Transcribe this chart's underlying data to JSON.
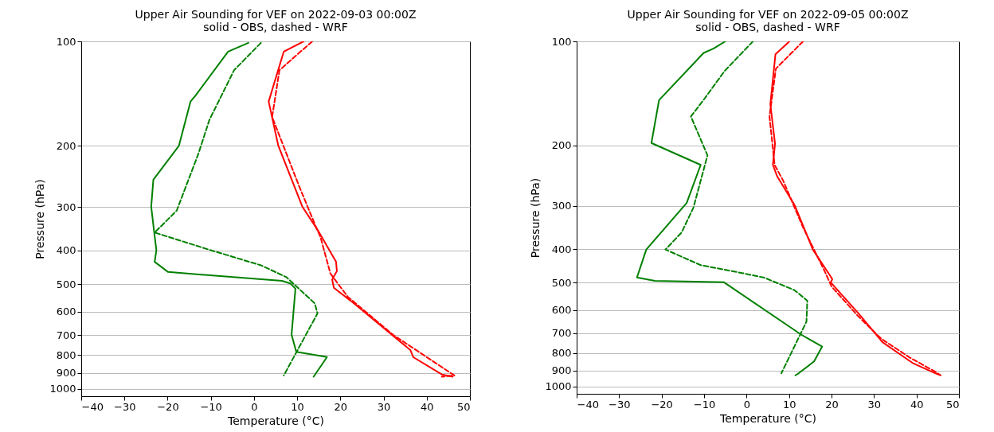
{
  "chart_data": [
    {
      "type": "line",
      "title": "Upper Air Sounding for VEF on 2022-09-03 00:00Z",
      "subtitle": "solid - OBS, dashed - WRF",
      "xlabel": "Temperature (°C)",
      "ylabel": "Pressure (hPa)",
      "xlim": [
        -40,
        50
      ],
      "xticks": [
        -40,
        -30,
        -20,
        -10,
        0,
        10,
        20,
        30,
        40,
        50
      ],
      "ylim": [
        1050,
        100
      ],
      "yticks": [
        100,
        200,
        300,
        400,
        500,
        600,
        700,
        800,
        900,
        1000
      ],
      "log": "y",
      "grid": "y",
      "series": [
        {
          "color": "#008000",
          "line_style": "solid",
          "x": [
            -1.3,
            -6.0,
            -13.5,
            -14.7,
            -17.4,
            -23.3,
            -23.8,
            -23.1,
            -22.6,
            -23.0,
            -19.9,
            6.5,
            8.5,
            9.6,
            8.7,
            9.8,
            16.9,
            16.2,
            13.8
          ],
          "values": [
            101,
            107,
            143,
            149,
            200,
            250,
            299,
            355,
            399,
            431,
            461,
            489,
            498,
            515,
            699,
            783,
            810,
            835,
            923
          ]
        },
        {
          "color": "#008000",
          "line_style": "dashed",
          "x": [
            1.6,
            -4.6,
            -10.3,
            -12.9,
            -17.9,
            -23.0,
            -10.6,
            1.6,
            7.5,
            14.1,
            14.7,
            6.9
          ],
          "values": [
            101,
            121,
            168,
            211,
            307,
            355,
            397,
            441,
            477,
            568,
            607,
            915
          ]
        },
        {
          "color": "#ff0000",
          "line_style": "solid",
          "x": [
            11.5,
            6.9,
            3.4,
            5.6,
            11.2,
            14.8,
            19.0,
            19.2,
            18.1,
            18.5,
            22.4,
            36.2,
            36.9,
            43.5,
            46.0
          ],
          "values": [
            100,
            107,
            149,
            199,
            299,
            350,
            431,
            458,
            485,
            512,
            558,
            773,
            811,
            909,
            923
          ]
        },
        {
          "color": "#ff0000",
          "line_style": "dashed",
          "x": [
            13.5,
            5.9,
            4.2,
            10.5,
            14.4,
            15.4,
            17.7,
            21.7,
            32.2,
            46.4,
            43.5
          ],
          "values": [
            100,
            121,
            165,
            262,
            343,
            366,
            466,
            543,
            699,
            915,
            923
          ]
        }
      ]
    },
    {
      "type": "line",
      "title": "Upper Air Sounding for VEF on 2022-09-05 00:00Z",
      "subtitle": "solid - OBS, dashed - WRF",
      "xlabel": "Temperature (°C)",
      "ylabel": "Pressure (hPa)",
      "xlim": [
        -40,
        50
      ],
      "xticks": [
        -40,
        -30,
        -20,
        -10,
        0,
        10,
        20,
        30,
        40,
        50
      ],
      "ylim": [
        1050,
        100
      ],
      "yticks": [
        100,
        200,
        300,
        400,
        500,
        600,
        700,
        800,
        900,
        1000
      ],
      "log": "y",
      "grid": "y",
      "series": [
        {
          "color": "#008000",
          "line_style": "solid",
          "x": [
            -5.0,
            -7.8,
            -10.1,
            -20.6,
            -22.4,
            -10.8,
            -14.1,
            -23.6,
            -25.8,
            -21.6,
            -5.3,
            12.9,
            17.8,
            15.9,
            12.3,
            11.5
          ],
          "values": [
            100,
            105,
            108,
            148,
            197,
            228,
            294,
            401,
            483,
            494,
            499,
            708,
            766,
            846,
            915,
            928
          ]
        },
        {
          "color": "#008000",
          "line_style": "dashed",
          "x": [
            1.5,
            -5.2,
            -9.8,
            -13.1,
            -9.2,
            -12.5,
            -15.3,
            -19.1,
            -10.8,
            -1.1,
            4.2,
            11.3,
            14.3,
            14.1,
            8.2
          ],
          "values": [
            100,
            122,
            146,
            165,
            214,
            303,
            358,
            401,
            445,
            469,
            484,
            526,
            564,
            649,
            915
          ]
        },
        {
          "color": "#ff0000",
          "line_style": "solid",
          "x": [
            10.1,
            6.8,
            5.6,
            6.7,
            6.2,
            7.2,
            11.3,
            15.6,
            19.6,
            20.2,
            19.8,
            26.3,
            32.0,
            39.1,
            44.4,
            45.7
          ],
          "values": [
            100,
            109,
            152,
            198,
            228,
            246,
            298,
            401,
            476,
            489,
            499,
            613,
            744,
            855,
            915,
            928
          ]
        },
        {
          "color": "#ff0000",
          "line_style": "dashed",
          "x": [
            13.3,
            6.9,
            5.4,
            6.6,
            8.6,
            13.3,
            18.3,
            20.0,
            26.3,
            31.7,
            38.4,
            44.4,
            45.4
          ],
          "values": [
            100,
            120,
            165,
            228,
            253,
            346,
            461,
            513,
            626,
            727,
            824,
            906,
            923
          ]
        }
      ]
    }
  ]
}
